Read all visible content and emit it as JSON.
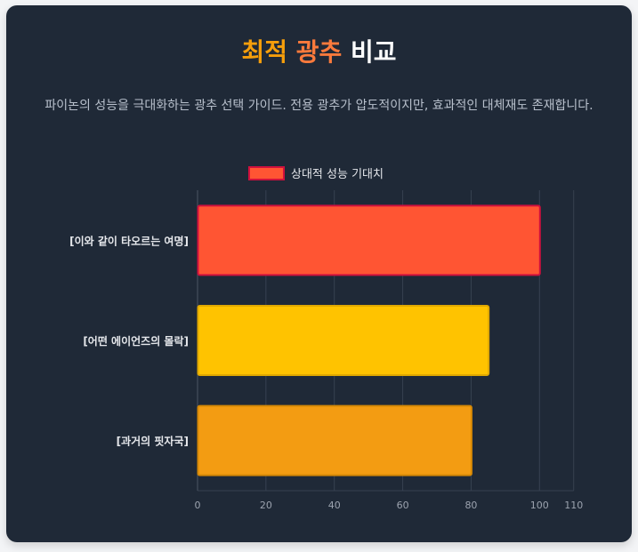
{
  "title": {
    "part1": "최적",
    "part2": "광추",
    "part3": "비교"
  },
  "subtitle": "파이논의 성능을 극대화하는 광추 선택 가이드. 전용 광추가 압도적이지만, 효과적인 대체재도 존재합니다.",
  "colors": {
    "background": "#1f2937",
    "title_orange": "#f59e0b",
    "title_coral": "#fb7a3c",
    "grid": "#374151"
  },
  "chart_data": {
    "type": "bar",
    "orientation": "horizontal",
    "categories": [
      "[이와 같이 타오르는 여명]",
      "[어떤 에이언즈의 몰락]",
      "[과거의 핏자국]"
    ],
    "series": [
      {
        "name": "상대적 성능 기대치",
        "values": [
          100,
          85,
          80
        ]
      }
    ],
    "bar_colors": [
      "#ff5533",
      "#ffc300",
      "#f39c12"
    ],
    "bar_border_colors": [
      "#d1103d",
      "#e0a800",
      "#d48806"
    ],
    "legend_color": "#ff5533",
    "legend_border": "#d1103d",
    "xlim": [
      0,
      110
    ],
    "x_ticks": [
      0,
      20,
      40,
      60,
      80,
      100,
      110
    ],
    "grid": true,
    "legend_position": "top"
  }
}
